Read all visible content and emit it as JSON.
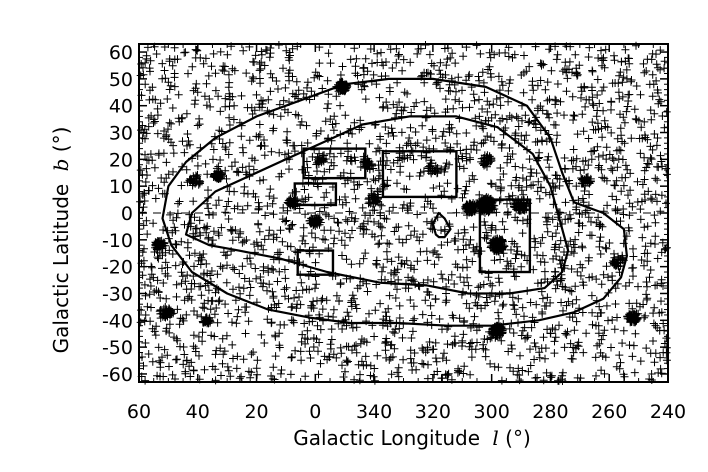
{
  "chart_data": {
    "type": "scatter",
    "title": "",
    "xlabel": "Galactic Longitude",
    "xlabel_symbol": "l",
    "xlabel_unit": "(°)",
    "ylabel": "Galactic Latitude",
    "ylabel_symbol": "b",
    "ylabel_unit": "(°)",
    "x_reversed": true,
    "xlim": [
      60,
      -120
    ],
    "ylim": [
      -63,
      63
    ],
    "x_ticks": [
      60,
      40,
      20,
      0,
      -20,
      -40,
      -60,
      -80,
      -100,
      -120
    ],
    "x_tick_labels": [
      "60",
      "40",
      "20",
      "0",
      "340",
      "320",
      "300",
      "280",
      "260",
      "240"
    ],
    "y_ticks": [
      60,
      50,
      40,
      30,
      20,
      10,
      0,
      -10,
      -20,
      -30,
      -40,
      -50,
      -60
    ],
    "y_tick_labels": [
      "60",
      "50",
      "40",
      "30",
      "20",
      "10",
      "0",
      "-10",
      "-20",
      "-30",
      "-40",
      "-50",
      "-60"
    ],
    "grid": false,
    "legend": "none",
    "marker": "plus",
    "reference_lines": [
      {
        "axis": "y",
        "value": 0,
        "style": "dashed"
      }
    ],
    "point_density": {
      "background_points": 2600,
      "clusters": [
        {
          "l": -9,
          "b": 47,
          "n": 60,
          "r": 2
        },
        {
          "l": 33,
          "b": 14,
          "n": 40,
          "r": 1.5
        },
        {
          "l": 0,
          "b": -3,
          "n": 30,
          "r": 2
        },
        {
          "l": 8,
          "b": 4,
          "n": 28,
          "r": 2
        },
        {
          "l": -62,
          "b": -12,
          "n": 90,
          "r": 2.5
        },
        {
          "l": -58,
          "b": 3,
          "n": 100,
          "r": 3
        },
        {
          "l": -53,
          "b": 2,
          "n": 60,
          "r": 2
        },
        {
          "l": -70,
          "b": 3,
          "n": 50,
          "r": 2.5
        },
        {
          "l": -62,
          "b": -44,
          "n": 70,
          "r": 2
        },
        {
          "l": -58,
          "b": 20,
          "n": 25,
          "r": 2
        },
        {
          "l": -108,
          "b": -39,
          "n": 50,
          "r": 2
        },
        {
          "l": 53,
          "b": -12,
          "n": 40,
          "r": 2
        },
        {
          "l": 51,
          "b": -37,
          "n": 40,
          "r": 2
        },
        {
          "l": 37,
          "b": -40,
          "n": 30,
          "r": 1.5
        },
        {
          "l": 41,
          "b": 12,
          "n": 25,
          "r": 2
        },
        {
          "l": -18,
          "b": 18,
          "n": 25,
          "r": 2
        },
        {
          "l": -103,
          "b": -18,
          "n": 25,
          "r": 2
        },
        {
          "l": -92,
          "b": 12,
          "n": 25,
          "r": 2
        },
        {
          "l": -20,
          "b": 5,
          "n": 25,
          "r": 2
        },
        {
          "l": -40,
          "b": 16,
          "n": 20,
          "r": 2
        },
        {
          "l": -2,
          "b": 20,
          "n": 20,
          "r": 2
        }
      ]
    },
    "contours": [
      {
        "name": "outer",
        "points": [
          [
            52,
            -2
          ],
          [
            50,
            10
          ],
          [
            44,
            19
          ],
          [
            34,
            28
          ],
          [
            20,
            36
          ],
          [
            5,
            42
          ],
          [
            -10,
            48
          ],
          [
            -25,
            50
          ],
          [
            -40,
            50
          ],
          [
            -58,
            47
          ],
          [
            -72,
            40
          ],
          [
            -80,
            28
          ],
          [
            -84,
            15
          ],
          [
            -88,
            4
          ],
          [
            -98,
            0
          ],
          [
            -105,
            -6
          ],
          [
            -106,
            -16
          ],
          [
            -104,
            -24
          ],
          [
            -98,
            -32
          ],
          [
            -88,
            -37
          ],
          [
            -76,
            -40
          ],
          [
            -60,
            -42
          ],
          [
            -45,
            -42
          ],
          [
            -28,
            -41
          ],
          [
            -12,
            -41
          ],
          [
            2,
            -39
          ],
          [
            16,
            -36
          ],
          [
            30,
            -30
          ],
          [
            42,
            -22
          ],
          [
            49,
            -12
          ],
          [
            52,
            -2
          ]
        ]
      },
      {
        "name": "inner",
        "points": [
          [
            44,
            -8
          ],
          [
            42,
            0
          ],
          [
            34,
            8
          ],
          [
            22,
            14
          ],
          [
            10,
            20
          ],
          [
            -2,
            26
          ],
          [
            -16,
            33
          ],
          [
            -32,
            36
          ],
          [
            -48,
            36
          ],
          [
            -62,
            32
          ],
          [
            -74,
            22
          ],
          [
            -80,
            10
          ],
          [
            -83,
            -2
          ],
          [
            -86,
            -14
          ],
          [
            -84,
            -22
          ],
          [
            -78,
            -28
          ],
          [
            -66,
            -30
          ],
          [
            -52,
            -30
          ],
          [
            -38,
            -27
          ],
          [
            -22,
            -26
          ],
          [
            -4,
            -22
          ],
          [
            12,
            -17
          ],
          [
            26,
            -14
          ],
          [
            36,
            -12
          ],
          [
            44,
            -8
          ]
        ]
      },
      {
        "name": "inner-loop",
        "points": [
          [
            -42,
            0
          ],
          [
            -44,
            -2
          ],
          [
            -46,
            -6
          ],
          [
            -44,
            -9
          ],
          [
            -42,
            -9
          ],
          [
            -41,
            -8
          ],
          [
            -40,
            -4
          ],
          [
            -42,
            0
          ]
        ]
      }
    ],
    "regions": [
      {
        "l1": 4,
        "l2": -17,
        "b1": 24,
        "b2": 13
      },
      {
        "l1": -23,
        "l2": -48,
        "b1": 23,
        "b2": 6
      },
      {
        "l1": 7,
        "l2": -7,
        "b1": 11,
        "b2": 3
      },
      {
        "l1": -56,
        "l2": -73,
        "b1": 5,
        "b2": -22
      },
      {
        "l1": 6,
        "l2": -6,
        "b1": -14,
        "b2": -23
      }
    ]
  }
}
